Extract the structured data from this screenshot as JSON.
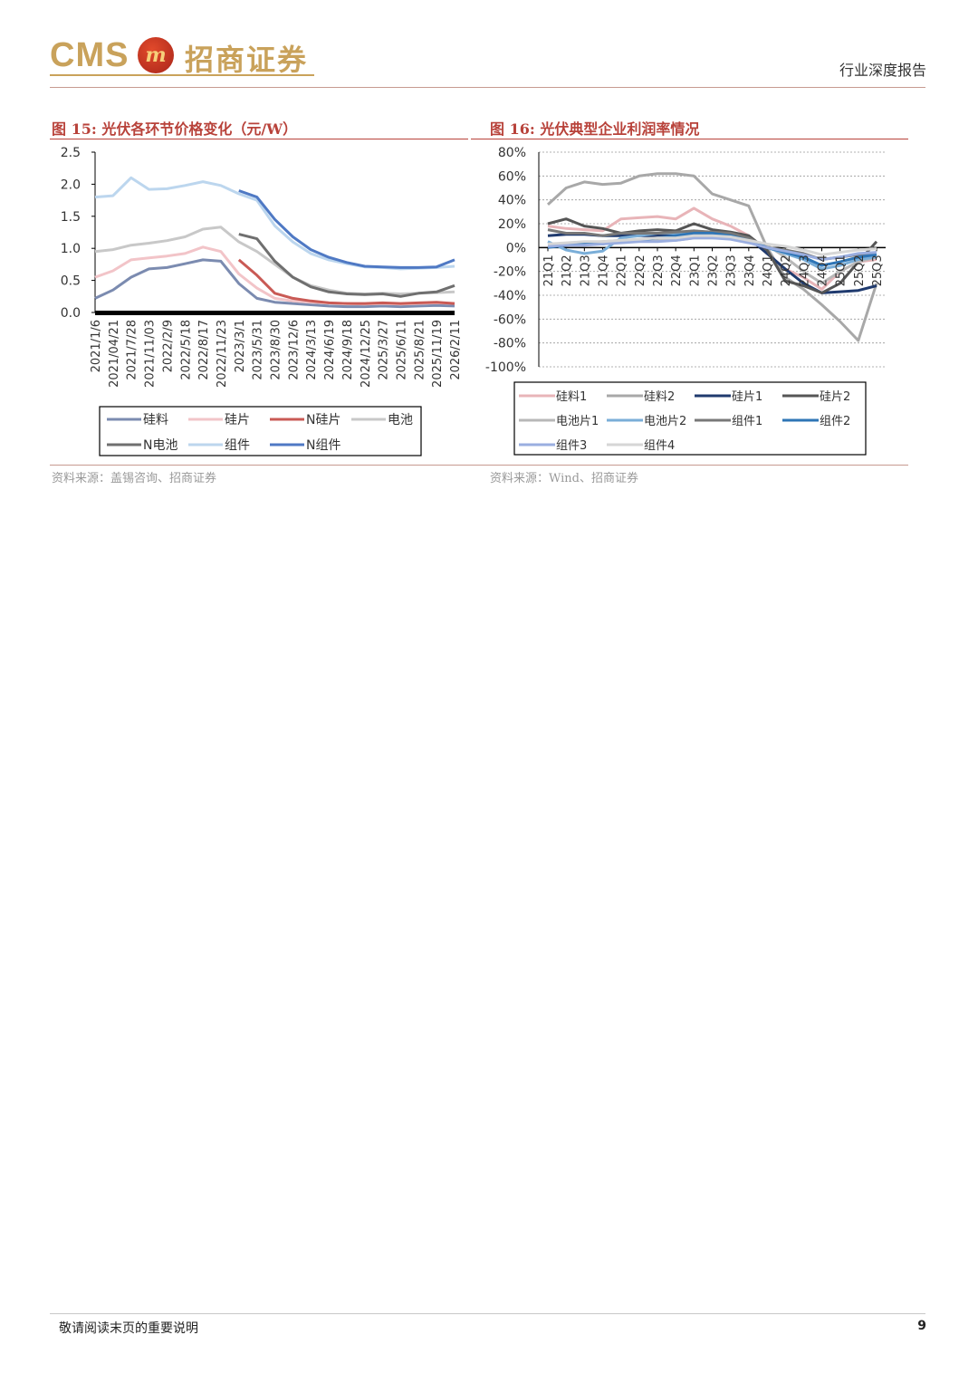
{
  "header": {
    "logo_latin": "CMS",
    "logo_badge": "m",
    "logo_cn": "招商证券",
    "report_type": "行业深度报告"
  },
  "figures": [
    {
      "title": "图 15:  光伏各环节价格变化（元/W）",
      "source": "资料来源：盖锡咨询、招商证券"
    },
    {
      "title": "图 16:  光伏典型企业利润率情况",
      "source": "资料来源：Wind、招商证券"
    }
  ],
  "chart_data": [
    {
      "type": "line",
      "title": "",
      "xlabel": "",
      "ylabel": "",
      "ylim": [
        0,
        2.5
      ],
      "yticks": [
        "0.0",
        "0.5",
        "1.0",
        "1.5",
        "2.0",
        "2.5"
      ],
      "x": [
        "2021/1/6",
        "2021/04/21",
        "2021/7/28",
        "2021/11/03",
        "2022/2/9",
        "2022/5/18",
        "2022/8/17",
        "2022/11/23",
        "2023/3/1",
        "2023/5/31",
        "2023/8/30",
        "2023/12/6",
        "2024/3/13",
        "2024/6/19",
        "2024/9/18",
        "2024/12/25",
        "2025/3/27",
        "2025/6/11",
        "2025/8/21",
        "2025/11/19",
        "2026/2/11"
      ],
      "legend_position": "bottom",
      "series": [
        {
          "name": "硅料",
          "color": "#7b8bb0",
          "values": [
            0.22,
            0.35,
            0.55,
            0.68,
            0.7,
            0.76,
            0.82,
            0.8,
            0.45,
            0.22,
            0.16,
            0.14,
            0.12,
            0.1,
            0.09,
            0.09,
            0.1,
            0.09,
            0.1,
            0.11,
            0.1
          ]
        },
        {
          "name": "硅片",
          "color": "#f2c4c8",
          "values": [
            0.55,
            0.65,
            0.82,
            0.85,
            0.88,
            0.92,
            1.02,
            0.95,
            0.6,
            0.38,
            0.22,
            0.18,
            0.16,
            0.15,
            0.14,
            0.13,
            0.14,
            0.13,
            0.14,
            0.15,
            0.14
          ]
        },
        {
          "name": "N硅片",
          "color": "#c95a55",
          "values": [
            null,
            null,
            null,
            null,
            null,
            null,
            null,
            null,
            0.82,
            0.58,
            0.3,
            0.22,
            0.18,
            0.15,
            0.14,
            0.14,
            0.15,
            0.14,
            0.15,
            0.16,
            0.14
          ]
        },
        {
          "name": "电池",
          "color": "#c8c8c8",
          "values": [
            0.95,
            0.98,
            1.05,
            1.08,
            1.12,
            1.18,
            1.3,
            1.33,
            1.1,
            0.95,
            0.75,
            0.55,
            0.42,
            0.35,
            0.3,
            0.29,
            0.3,
            0.29,
            0.3,
            0.31,
            0.32
          ]
        },
        {
          "name": "N电池",
          "color": "#6f6f6f",
          "values": [
            null,
            null,
            null,
            null,
            null,
            null,
            null,
            null,
            1.22,
            1.15,
            0.8,
            0.55,
            0.4,
            0.32,
            0.29,
            0.28,
            0.29,
            0.25,
            0.3,
            0.32,
            0.42
          ]
        },
        {
          "name": "组件",
          "color": "#bcd6ee",
          "values": [
            1.8,
            1.82,
            2.1,
            1.92,
            1.93,
            1.98,
            2.04,
            1.98,
            1.85,
            1.75,
            1.35,
            1.1,
            0.92,
            0.82,
            0.76,
            0.71,
            0.7,
            0.68,
            0.69,
            0.7,
            0.72
          ]
        },
        {
          "name": "N组件",
          "color": "#4f79c4",
          "values": [
            null,
            null,
            null,
            null,
            null,
            null,
            null,
            null,
            1.9,
            1.8,
            1.45,
            1.18,
            0.98,
            0.86,
            0.78,
            0.72,
            0.71,
            0.7,
            0.7,
            0.71,
            0.82
          ]
        }
      ]
    },
    {
      "type": "line",
      "title": "",
      "xlabel": "",
      "ylabel": "",
      "ylim": [
        -100,
        80
      ],
      "yticks": [
        "-100%",
        "-80%",
        "-60%",
        "-40%",
        "-20%",
        "0%",
        "20%",
        "40%",
        "60%",
        "80%"
      ],
      "grid": true,
      "x": [
        "21Q1",
        "21Q2",
        "21Q3",
        "21Q4",
        "22Q1",
        "22Q2",
        "22Q3",
        "22Q4",
        "23Q1",
        "23Q2",
        "23Q3",
        "23Q4",
        "24Q1",
        "24Q2",
        "24Q3",
        "24Q4",
        "25Q1",
        "25Q2",
        "25Q3"
      ],
      "legend_position": "bottom",
      "series": [
        {
          "name": "硅料1",
          "color": "#e8b4b8",
          "values": [
            18,
            16,
            15,
            14,
            24,
            25,
            26,
            24,
            33,
            24,
            18,
            10,
            -5,
            -18,
            -25,
            -35,
            -20,
            -12,
            -10
          ]
        },
        {
          "name": "硅料2",
          "color": "#a8a8a8",
          "values": [
            36,
            50,
            55,
            53,
            54,
            60,
            62,
            62,
            60,
            45,
            40,
            35,
            0,
            -25,
            -35,
            -48,
            -62,
            -78,
            -30
          ]
        },
        {
          "name": "硅片1",
          "color": "#1f3a6e",
          "values": [
            10,
            11,
            11,
            10,
            10,
            10,
            10,
            10,
            12,
            12,
            12,
            8,
            -5,
            -18,
            -30,
            -38,
            -37,
            -36,
            -32
          ]
        },
        {
          "name": "硅片2",
          "color": "#555555",
          "values": [
            20,
            24,
            18,
            16,
            12,
            14,
            15,
            14,
            20,
            15,
            13,
            10,
            -2,
            -28,
            -32,
            -38,
            -30,
            -12,
            5
          ]
        },
        {
          "name": "电池片1",
          "color": "#b8b8b8",
          "values": [
            2,
            3,
            4,
            5,
            6,
            6,
            6,
            6,
            8,
            8,
            8,
            5,
            2,
            -8,
            -20,
            -30,
            -20,
            -12,
            -8
          ]
        },
        {
          "name": "电池片2",
          "color": "#7aaed8",
          "values": [
            5,
            -2,
            -5,
            -3,
            8,
            10,
            12,
            12,
            14,
            12,
            10,
            5,
            0,
            -5,
            -10,
            -18,
            -15,
            -10,
            -8
          ]
        },
        {
          "name": "组件1",
          "color": "#787878",
          "values": [
            15,
            12,
            12,
            10,
            12,
            12,
            12,
            13,
            14,
            13,
            12,
            8,
            0,
            -2,
            -5,
            -10,
            -8,
            -6,
            -5
          ]
        },
        {
          "name": "组件2",
          "color": "#2e75b6",
          "values": [
            0,
            2,
            3,
            3,
            5,
            6,
            8,
            10,
            12,
            12,
            10,
            6,
            0,
            -4,
            -8,
            -15,
            -12,
            -8,
            -6
          ]
        },
        {
          "name": "组件3",
          "color": "#9aaee0",
          "values": [
            1,
            2,
            2,
            3,
            4,
            5,
            5,
            6,
            8,
            8,
            7,
            4,
            0,
            -3,
            -6,
            -10,
            -8,
            -5,
            -4
          ]
        },
        {
          "name": "组件4",
          "color": "#d6d6d6",
          "values": [
            3,
            4,
            5,
            5,
            6,
            7,
            8,
            8,
            10,
            10,
            9,
            6,
            3,
            1,
            -2,
            -6,
            -4,
            -2,
            -1
          ]
        }
      ]
    }
  ],
  "footer": {
    "disclaimer": "敬请阅读末页的重要说明",
    "page": "9"
  }
}
